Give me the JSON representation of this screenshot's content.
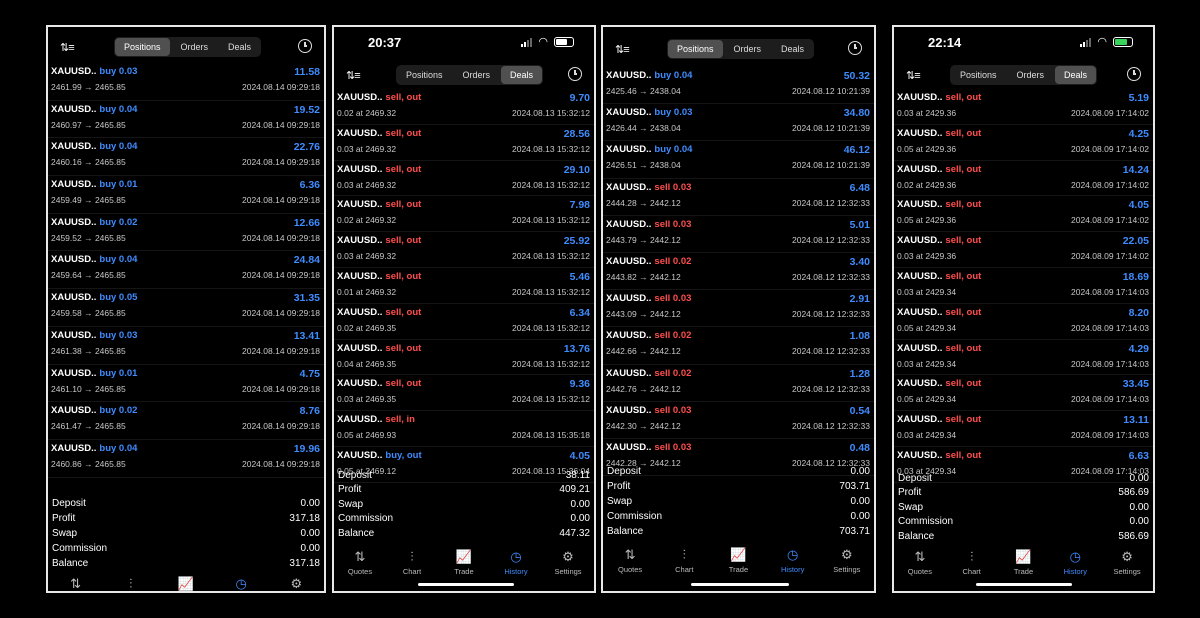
{
  "common": {
    "segments": [
      "Positions",
      "Orders",
      "Deals"
    ],
    "summary_labels": [
      "Deposit",
      "Profit",
      "Swap",
      "Commission",
      "Balance"
    ],
    "tabbar": [
      {
        "label": "Quotes",
        "icon": "quotes-icon",
        "glyph": "⇅"
      },
      {
        "label": "Chart",
        "icon": "candles-icon",
        "glyph": "⫶"
      },
      {
        "label": "Trade",
        "icon": "trade-chart-icon",
        "glyph": "📈"
      },
      {
        "label": "History",
        "icon": "history-clock-icon",
        "glyph": "◷"
      },
      {
        "label": "Settings",
        "icon": "gear-icon",
        "glyph": "⚙"
      }
    ],
    "active_tab": "History"
  },
  "screens": [
    {
      "status_time": "",
      "active_segment": "Positions",
      "rows": [
        {
          "symbol": "XAUUSD..",
          "side": "buy 0.03",
          "type": "buy",
          "prices": "2461.99 → 2465.85",
          "time": "2024.08.14 09:29:18",
          "profit": "11.58"
        },
        {
          "symbol": "XAUUSD..",
          "side": "buy 0.04",
          "type": "buy",
          "prices": "2460.97 → 2465.85",
          "time": "2024.08.14 09:29:18",
          "profit": "19.52"
        },
        {
          "symbol": "XAUUSD..",
          "side": "buy 0.04",
          "type": "buy",
          "prices": "2460.16 → 2465.85",
          "time": "2024.08.14 09:29:18",
          "profit": "22.76"
        },
        {
          "symbol": "XAUUSD..",
          "side": "buy 0.01",
          "type": "buy",
          "prices": "2459.49 → 2465.85",
          "time": "2024.08.14 09:29:18",
          "profit": "6.36"
        },
        {
          "symbol": "XAUUSD..",
          "side": "buy 0.02",
          "type": "buy",
          "prices": "2459.52 → 2465.85",
          "time": "2024.08.14 09:29:18",
          "profit": "12.66"
        },
        {
          "symbol": "XAUUSD..",
          "side": "buy 0.04",
          "type": "buy",
          "prices": "2459.64 → 2465.85",
          "time": "2024.08.14 09:29:18",
          "profit": "24.84"
        },
        {
          "symbol": "XAUUSD..",
          "side": "buy 0.05",
          "type": "buy",
          "prices": "2459.58 → 2465.85",
          "time": "2024.08.14 09:29:18",
          "profit": "31.35"
        },
        {
          "symbol": "XAUUSD..",
          "side": "buy 0.03",
          "type": "buy",
          "prices": "2461.38 → 2465.85",
          "time": "2024.08.14 09:29:18",
          "profit": "13.41"
        },
        {
          "symbol": "XAUUSD..",
          "side": "buy 0.01",
          "type": "buy",
          "prices": "2461.10 → 2465.85",
          "time": "2024.08.14 09:29:18",
          "profit": "4.75"
        },
        {
          "symbol": "XAUUSD..",
          "side": "buy 0.02",
          "type": "buy",
          "prices": "2461.47 → 2465.85",
          "time": "2024.08.14 09:29:18",
          "profit": "8.76"
        },
        {
          "symbol": "XAUUSD..",
          "side": "buy 0.04",
          "type": "buy",
          "prices": "2460.86 → 2465.85",
          "time": "2024.08.14 09:29:18",
          "profit": "19.96"
        }
      ],
      "summary": [
        "0.00",
        "317.18",
        "0.00",
        "0.00",
        "317.18"
      ]
    },
    {
      "status_time": "20:37",
      "active_segment": "Deals",
      "rows": [
        {
          "symbol": "XAUUSD..",
          "side": "sell, out",
          "type": "sell",
          "prices": "0.02 at 2469.32",
          "time": "2024.08.13 15:32:12",
          "profit": "9.70"
        },
        {
          "symbol": "XAUUSD..",
          "side": "sell, out",
          "type": "sell",
          "prices": "0.03 at 2469.32",
          "time": "2024.08.13 15:32:12",
          "profit": "28.56"
        },
        {
          "symbol": "XAUUSD..",
          "side": "sell, out",
          "type": "sell",
          "prices": "0.03 at 2469.32",
          "time": "2024.08.13 15:32:12",
          "profit": "29.10"
        },
        {
          "symbol": "XAUUSD..",
          "side": "sell, out",
          "type": "sell",
          "prices": "0.02 at 2469.32",
          "time": "2024.08.13 15:32:12",
          "profit": "7.98"
        },
        {
          "symbol": "XAUUSD..",
          "side": "sell, out",
          "type": "sell",
          "prices": "0.03 at 2469.32",
          "time": "2024.08.13 15:32:12",
          "profit": "25.92"
        },
        {
          "symbol": "XAUUSD..",
          "side": "sell, out",
          "type": "sell",
          "prices": "0.01 at 2469.32",
          "time": "2024.08.13 15:32:12",
          "profit": "5.46"
        },
        {
          "symbol": "XAUUSD..",
          "side": "sell, out",
          "type": "sell",
          "prices": "0.02 at 2469.35",
          "time": "2024.08.13 15:32:12",
          "profit": "6.34"
        },
        {
          "symbol": "XAUUSD..",
          "side": "sell, out",
          "type": "sell",
          "prices": "0.04 at 2469.35",
          "time": "2024.08.13 15:32:12",
          "profit": "13.76"
        },
        {
          "symbol": "XAUUSD..",
          "side": "sell, out",
          "type": "sell",
          "prices": "0.03 at 2469.35",
          "time": "2024.08.13 15:32:12",
          "profit": "9.36"
        },
        {
          "symbol": "XAUUSD..",
          "side": "sell, in",
          "type": "sell",
          "prices": "0.05 at 2469.93",
          "time": "2024.08.13 15:35:18",
          "profit": ""
        },
        {
          "symbol": "XAUUSD..",
          "side": "buy, out",
          "type": "buy",
          "prices": "0.05 at 2469.12",
          "time": "2024.08.13 15:36:04",
          "profit": "4.05"
        }
      ],
      "summary": [
        "38.11",
        "409.21",
        "0.00",
        "0.00",
        "447.32"
      ]
    },
    {
      "status_time": "",
      "active_segment": "Positions",
      "rows": [
        {
          "symbol": "XAUUSD..",
          "side": "buy 0.04",
          "type": "buy",
          "prices": "2425.46 → 2438.04",
          "time": "2024.08.12 10:21:39",
          "profit": "50.32"
        },
        {
          "symbol": "XAUUSD..",
          "side": "buy 0.03",
          "type": "buy",
          "prices": "2426.44 → 2438.04",
          "time": "2024.08.12 10:21:39",
          "profit": "34.80"
        },
        {
          "symbol": "XAUUSD..",
          "side": "buy 0.04",
          "type": "buy",
          "prices": "2426.51 → 2438.04",
          "time": "2024.08.12 10:21:39",
          "profit": "46.12"
        },
        {
          "symbol": "XAUUSD..",
          "side": "sell 0.03",
          "type": "sell",
          "prices": "2444.28 → 2442.12",
          "time": "2024.08.12 12:32:33",
          "profit": "6.48"
        },
        {
          "symbol": "XAUUSD..",
          "side": "sell 0.03",
          "type": "sell",
          "prices": "2443.79 → 2442.12",
          "time": "2024.08.12 12:32:33",
          "profit": "5.01"
        },
        {
          "symbol": "XAUUSD..",
          "side": "sell 0.02",
          "type": "sell",
          "prices": "2443.82 → 2442.12",
          "time": "2024.08.12 12:32:33",
          "profit": "3.40"
        },
        {
          "symbol": "XAUUSD..",
          "side": "sell 0.03",
          "type": "sell",
          "prices": "2443.09 → 2442.12",
          "time": "2024.08.12 12:32:33",
          "profit": "2.91"
        },
        {
          "symbol": "XAUUSD..",
          "side": "sell 0.02",
          "type": "sell",
          "prices": "2442.66 → 2442.12",
          "time": "2024.08.12 12:32:33",
          "profit": "1.08"
        },
        {
          "symbol": "XAUUSD..",
          "side": "sell 0.02",
          "type": "sell",
          "prices": "2442.76 → 2442.12",
          "time": "2024.08.12 12:32:33",
          "profit": "1.28"
        },
        {
          "symbol": "XAUUSD..",
          "side": "sell 0.03",
          "type": "sell",
          "prices": "2442.30 → 2442.12",
          "time": "2024.08.12 12:32:33",
          "profit": "0.54"
        },
        {
          "symbol": "XAUUSD..",
          "side": "sell 0.03",
          "type": "sell",
          "prices": "2442.28 → 2442.12",
          "time": "2024.08.12 12:32:33",
          "profit": "0.48"
        }
      ],
      "summary": [
        "0.00",
        "703.71",
        "0.00",
        "0.00",
        "703.71"
      ]
    },
    {
      "status_time": "22:14",
      "active_segment": "Deals",
      "rows": [
        {
          "symbol": "XAUUSD..",
          "side": "sell, out",
          "type": "sell",
          "prices": "0.03 at 2429.36",
          "time": "2024.08.09 17:14:02",
          "profit": "5.19"
        },
        {
          "symbol": "XAUUSD..",
          "side": "sell, out",
          "type": "sell",
          "prices": "0.05 at 2429.36",
          "time": "2024.08.09 17:14:02",
          "profit": "4.25"
        },
        {
          "symbol": "XAUUSD..",
          "side": "sell, out",
          "type": "sell",
          "prices": "0.02 at 2429.36",
          "time": "2024.08.09 17:14:02",
          "profit": "14.24"
        },
        {
          "symbol": "XAUUSD..",
          "side": "sell, out",
          "type": "sell",
          "prices": "0.05 at 2429.36",
          "time": "2024.08.09 17:14:02",
          "profit": "4.05"
        },
        {
          "symbol": "XAUUSD..",
          "side": "sell, out",
          "type": "sell",
          "prices": "0.03 at 2429.36",
          "time": "2024.08.09 17:14:02",
          "profit": "22.05"
        },
        {
          "symbol": "XAUUSD..",
          "side": "sell, out",
          "type": "sell",
          "prices": "0.03 at 2429.34",
          "time": "2024.08.09 17:14:03",
          "profit": "18.69"
        },
        {
          "symbol": "XAUUSD..",
          "side": "sell, out",
          "type": "sell",
          "prices": "0.05 at 2429.34",
          "time": "2024.08.09 17:14:03",
          "profit": "8.20"
        },
        {
          "symbol": "XAUUSD..",
          "side": "sell, out",
          "type": "sell",
          "prices": "0.03 at 2429.34",
          "time": "2024.08.09 17:14:03",
          "profit": "4.29"
        },
        {
          "symbol": "XAUUSD..",
          "side": "sell, out",
          "type": "sell",
          "prices": "0.05 at 2429.34",
          "time": "2024.08.09 17:14:03",
          "profit": "33.45"
        },
        {
          "symbol": "XAUUSD..",
          "side": "sell, out",
          "type": "sell",
          "prices": "0.03 at 2429.34",
          "time": "2024.08.09 17:14:03",
          "profit": "13.11"
        },
        {
          "symbol": "XAUUSD..",
          "side": "sell, out",
          "type": "sell",
          "prices": "0.03 at 2429.34",
          "time": "2024.08.09 17:14:03",
          "profit": "6.63"
        }
      ],
      "summary": [
        "0.00",
        "586.69",
        "0.00",
        "0.00",
        "586.69"
      ]
    }
  ]
}
